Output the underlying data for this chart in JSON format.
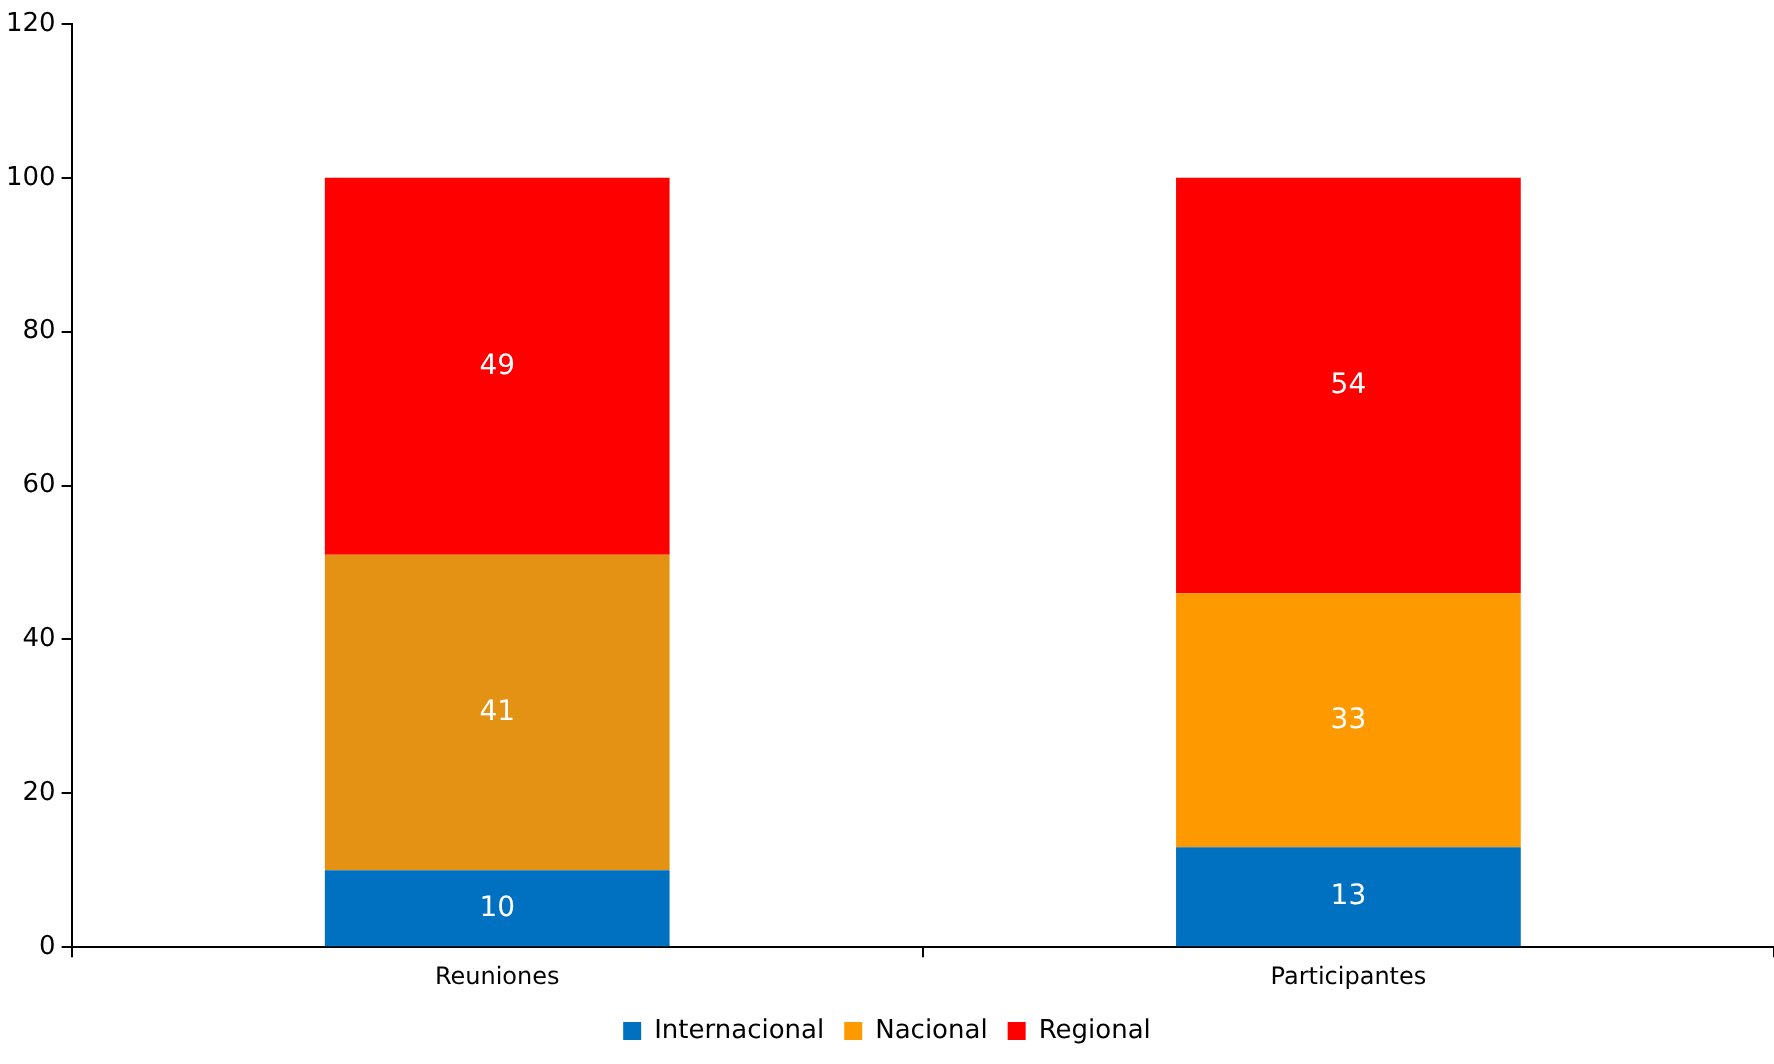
{
  "chart_data": {
    "type": "bar",
    "stacked": true,
    "categories": [
      "Reuniones",
      "Participantes"
    ],
    "series": [
      {
        "name": "Internacional",
        "color": "#0070c0",
        "values": [
          10,
          13
        ]
      },
      {
        "name": "Nacional",
        "color": "#ff9900",
        "colors": [
          "#e39214",
          "#ff9900"
        ],
        "values": [
          41,
          33
        ]
      },
      {
        "name": "Regional",
        "color": "#ff0000",
        "values": [
          49,
          54
        ]
      }
    ],
    "ylim": [
      0,
      120
    ],
    "yticks": [
      0,
      20,
      40,
      60,
      80,
      100,
      120
    ],
    "grid": false,
    "legend": "bottom",
    "data_labels": true
  }
}
